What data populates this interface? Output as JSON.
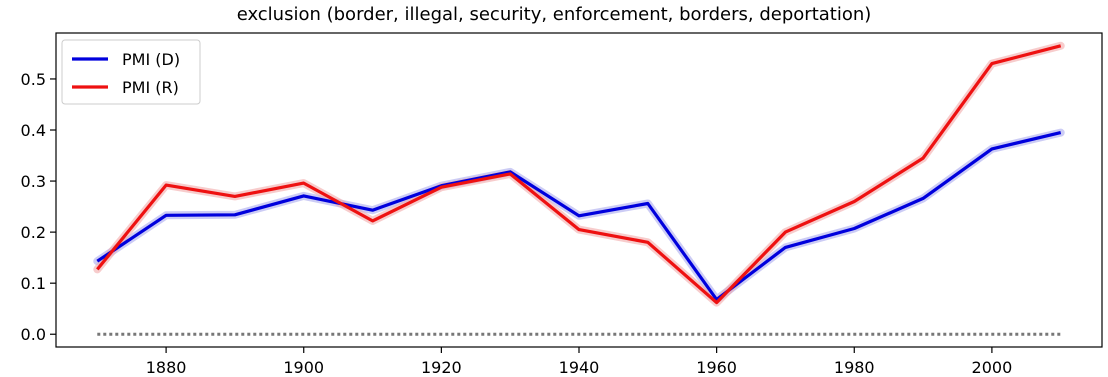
{
  "chart_data": {
    "type": "line",
    "title": "exclusion (border, illegal, security, enforcement, borders, deportation)",
    "xlabel": "",
    "ylabel": "",
    "x": [
      1870,
      1880,
      1890,
      1900,
      1910,
      1920,
      1930,
      1940,
      1950,
      1960,
      1970,
      1980,
      1990,
      2000,
      2010
    ],
    "xlim": [
      1864,
      2016
    ],
    "ylim": [
      -0.025,
      0.59
    ],
    "xticks": [
      1880,
      1900,
      1920,
      1940,
      1960,
      1980,
      2000
    ],
    "yticks": [
      0.0,
      0.1,
      0.2,
      0.3,
      0.4,
      0.5
    ],
    "ytick_labels": [
      "0.0",
      "0.1",
      "0.2",
      "0.3",
      "0.4",
      "0.5"
    ],
    "grid": false,
    "legend_position": "top-left",
    "series": [
      {
        "name": "PMI (D)",
        "color": "#0000dd",
        "band_color": "#aaaaee",
        "values": [
          0.143,
          0.233,
          0.234,
          0.271,
          0.243,
          0.291,
          0.318,
          0.232,
          0.256,
          0.068,
          0.17,
          0.207,
          0.266,
          0.363,
          0.395
        ]
      },
      {
        "name": "PMI (R)",
        "color": "#ee1111",
        "band_color": "#f2aaaa",
        "values": [
          0.127,
          0.292,
          0.27,
          0.296,
          0.222,
          0.288,
          0.314,
          0.205,
          0.18,
          0.062,
          0.2,
          0.26,
          0.345,
          0.53,
          0.565
        ]
      }
    ],
    "baseline": {
      "value": 0.0,
      "color": "#777777",
      "style": "dotted"
    }
  }
}
